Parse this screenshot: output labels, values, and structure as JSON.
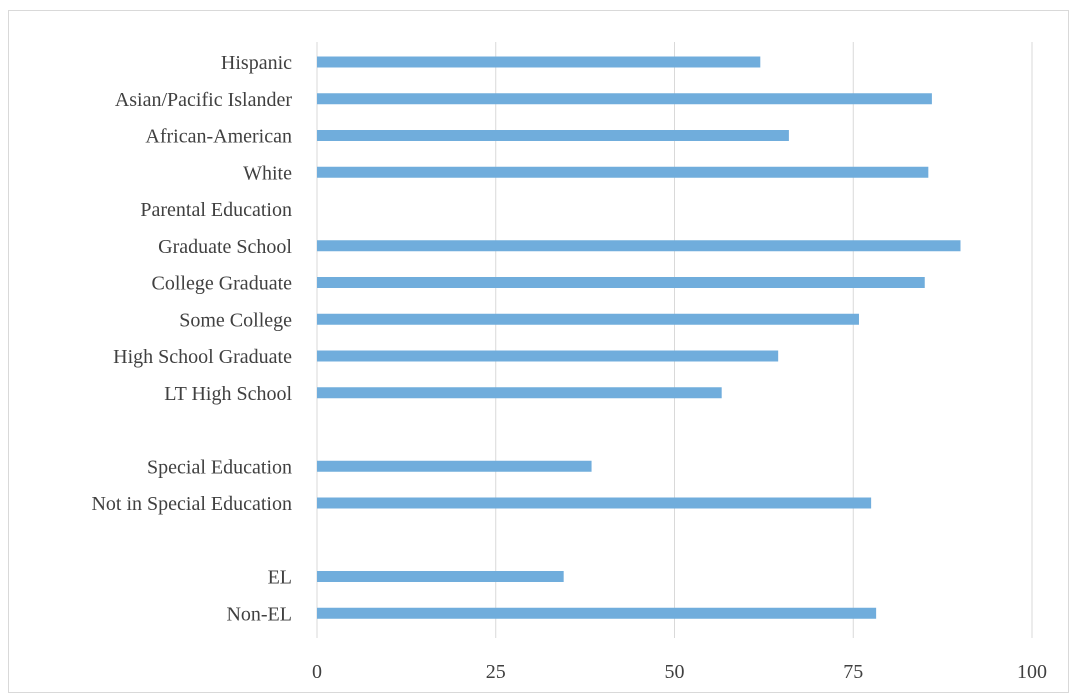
{
  "chart_data": {
    "type": "bar",
    "orientation": "horizontal",
    "title": "",
    "xlabel": "",
    "ylabel": "",
    "xlim": [
      0,
      100
    ],
    "x_ticks": [
      0,
      25,
      50,
      75,
      100
    ],
    "grid": "vertical",
    "legend": "none",
    "bar_color": "#70ADDC",
    "categories": [
      "Hispanic",
      "Asian/Pacific Islander",
      "African-American",
      "White",
      "Parental Education",
      "Graduate School",
      "College Graduate",
      "Some College",
      "High School Graduate",
      "LT High School",
      "",
      "Special Education",
      "Not in Special Education",
      "",
      "EL",
      "Non-EL"
    ],
    "values": [
      62,
      86,
      66,
      85.5,
      null,
      90,
      85,
      75.8,
      64.5,
      56.6,
      null,
      38.4,
      77.5,
      null,
      34.5,
      78.2
    ]
  }
}
